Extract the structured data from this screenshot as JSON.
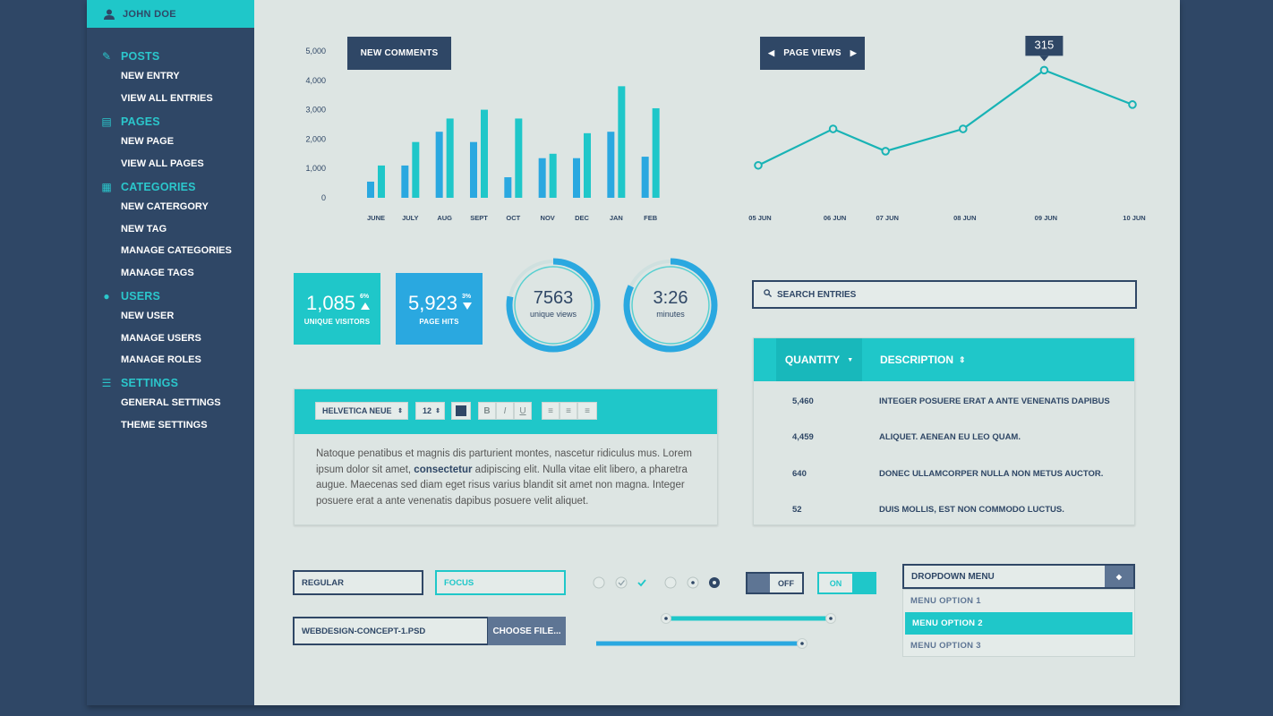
{
  "user": {
    "name": "JOHN DOE",
    "icon": "user-icon"
  },
  "sidebar": {
    "sections": [
      {
        "label": "POSTS",
        "icon": "pencil-icon",
        "items": [
          "NEW ENTRY",
          "VIEW ALL ENTRIES"
        ]
      },
      {
        "label": "PAGES",
        "icon": "page-icon",
        "items": [
          "NEW PAGE",
          "VIEW ALL PAGES"
        ]
      },
      {
        "label": "CATEGORIES",
        "icon": "categories-icon",
        "items": [
          "NEW CATERGORY",
          "NEW TAG",
          "MANAGE CATEGORIES",
          "MANAGE TAGS"
        ]
      },
      {
        "label": "USERS",
        "icon": "user-icon",
        "items": [
          "NEW USER",
          "MANAGE USERS",
          "MANAGE ROLES"
        ]
      },
      {
        "label": "SETTINGS",
        "icon": "settings-icon",
        "items": [
          "GENERAL SETTINGS",
          "THEME SETTINGS"
        ]
      }
    ]
  },
  "comments_chart": {
    "label": "NEW COMMENTS",
    "chart_data": {
      "type": "bar",
      "categories": [
        "JUNE",
        "JULY",
        "AUG",
        "SEPT",
        "OCT",
        "NOV",
        "DEC",
        "JAN",
        "FEB"
      ],
      "series": [
        {
          "values": [
            550,
            1100,
            2250,
            1900,
            700,
            1350,
            1350,
            2250,
            1400
          ]
        },
        {
          "values": [
            1100,
            1900,
            2700,
            3000,
            2700,
            1500,
            2200,
            3800,
            3050
          ]
        }
      ],
      "yticks": [
        0,
        1000,
        2000,
        3000,
        4000,
        5000
      ],
      "ytick_labels": [
        "0",
        "1,000",
        "2,000",
        "3,000",
        "4,000",
        "5,000"
      ],
      "ylim": [
        0,
        5000
      ],
      "colors": [
        "#2aa8e0",
        "#1fc7c9"
      ]
    }
  },
  "pageviews_chart": {
    "label": "PAGE VIEWS",
    "tooltip": "315",
    "chart_data": {
      "type": "line",
      "categories": [
        "05 JUN",
        "06 JUN",
        "07 JUN",
        "08 JUN",
        "09 JUN",
        "10 JUN"
      ],
      "values": [
        80,
        170,
        115,
        170,
        315,
        230
      ],
      "ylim": [
        0,
        360
      ],
      "color": "#18b3b5"
    }
  },
  "stats": {
    "visitors": {
      "value": "1,085",
      "label": "UNIQUE VISITORS",
      "pct": "6%",
      "trend": "up",
      "color": "#1fc7c9"
    },
    "hits": {
      "value": "5,923",
      "label": "PAGE HITS",
      "pct": "3%",
      "trend": "down",
      "color": "#2aa8e0"
    },
    "views": {
      "value": "7563",
      "label": "unique views",
      "fraction": 0.78
    },
    "minutes": {
      "value": "3:26",
      "label": "minutes",
      "fraction": 0.82
    }
  },
  "editor": {
    "font": "HELVETICA NEUE",
    "size": "12",
    "format_buttons": [
      "B",
      "I",
      "U"
    ],
    "text_before": "Natoque penatibus et magnis dis parturient montes, nascetur ridiculus mus. Lorem ipsum dolor sit amet, ",
    "text_bold": "consectetur",
    "text_after": " adipiscing elit. Nulla vitae elit libero, a pharetra augue. Maecenas sed diam eget risus varius blandit sit amet non magna. Integer posuere erat a ante venenatis dapibus posuere velit aliquet."
  },
  "search": {
    "placeholder": "SEARCH ENTRIES"
  },
  "table": {
    "columns": [
      "QUANTITY",
      "DESCRIPTION"
    ],
    "rows": [
      {
        "quantity": "5,460",
        "description": "INTEGER POSUERE ERAT A ANTE VENENATIS DAPIBUS"
      },
      {
        "quantity": "4,459",
        "description": "ALIQUET. AENEAN EU LEO QUAM."
      },
      {
        "quantity": "640",
        "description": "DONEC ULLAMCORPER NULLA NON METUS AUCTOR."
      },
      {
        "quantity": "52",
        "description": "DUIS MOLLIS, EST NON COMMODO LUCTUS."
      }
    ]
  },
  "form": {
    "regular": "REGULAR",
    "focus": "FOCUS",
    "file_name": "WEBDESIGN-CONCEPT-1.PSD",
    "choose_label": "CHOOSE FILE...",
    "toggle_off": "OFF",
    "toggle_on": "ON",
    "slider_range": [
      0.0,
      0.5
    ],
    "slider_single": 0.65
  },
  "dropdown": {
    "label": "DROPDOWN MENU",
    "options": [
      "MENU OPTION 1",
      "MENU OPTION 2",
      "MENU OPTION 3"
    ],
    "selected": "MENU OPTION 2"
  },
  "colors": {
    "navy": "#2f4766",
    "teal": "#1fc7c9",
    "blue": "#2aa8e0",
    "panel": "#dde5e3"
  }
}
